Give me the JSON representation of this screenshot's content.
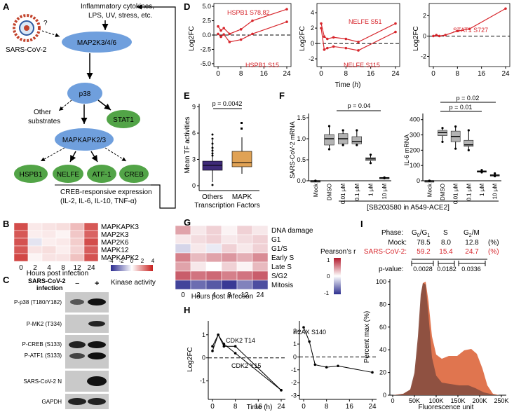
{
  "panels": {
    "a": "A",
    "b": "B",
    "c": "C",
    "d": "D",
    "e": "E",
    "f": "F",
    "g": "G",
    "h": "H",
    "i": "I"
  },
  "colors": {
    "node_blue": "#6f9fdd",
    "node_green": "#52a447",
    "red": "#d7262c",
    "purple": "#3e2a78",
    "orange": "#e0a255",
    "gray_box": "#b3b3b3",
    "hist_mock": "#8a4f40",
    "hist_sars": "#e0754f"
  },
  "pathway": {
    "virus_label": "SARS-CoV-2",
    "question": "?",
    "stimuli": "Inflammatory cytokines,",
    "stimuli2": "LPS, UV, stress, etc.",
    "map2k": "MAP2K3/4/6",
    "p38": "p38",
    "stat1": "STAT1",
    "other1": "Other",
    "other2": "substrates",
    "mapkapk": "MAPKAPK2/3",
    "targets": [
      "HSPB1",
      "NELFE",
      "ATF-1",
      "CREB"
    ],
    "creb_line1": "CREB-responsive expression",
    "creb_line2": "(IL-2, IL-6, IL-10, TNF-α)"
  },
  "heatmap_b": {
    "rows": [
      "MAPKAPK3",
      "MAP2K3",
      "MAP2K6",
      "MAPK12",
      "MAPKAPK2"
    ],
    "cols": [
      "0",
      "2",
      "4",
      "8",
      "12",
      "24"
    ],
    "values": [
      [
        3.2,
        0.4,
        0.5,
        0.6,
        1.2,
        3.0
      ],
      [
        3.0,
        0.3,
        0.4,
        0.2,
        1.0,
        2.8
      ],
      [
        3.1,
        -0.5,
        0.3,
        0.4,
        0.9,
        3.2
      ],
      [
        3.0,
        0.5,
        0.6,
        0.3,
        0.8,
        2.9
      ],
      [
        3.3,
        0.2,
        0.5,
        0.5,
        1.1,
        3.1
      ]
    ],
    "xlabel": "Hours post infection",
    "legend_ticks": [
      "-4",
      "-2",
      "0",
      "2",
      "4"
    ],
    "legend_title": "Kinase activity"
  },
  "blot_c": {
    "header1": "SARS-CoV-2",
    "header2": "infection",
    "minus": "−",
    "plus": "+",
    "bands": [
      "P-p38 (T180/Y182)",
      "P-MK2 (T334)",
      "P-CREB (S133)",
      "P-ATF1 (S133)",
      "SARS-CoV-2 N",
      "GAPDH"
    ]
  },
  "panel_d": {
    "ylabel": "Log2FC",
    "xlabel_prefix": "Time (",
    "xlabel_h": "h",
    "xlabel_suffix": ")",
    "xticks": [
      "0",
      "8",
      "16",
      "24"
    ],
    "yticks1": [
      "5.0",
      "2.5",
      "0.0",
      "-2.5",
      "-5.0"
    ],
    "yticks2": [
      "4",
      "2",
      "0",
      "-2"
    ],
    "yticks3": [
      "4",
      "2",
      "0",
      "-2"
    ],
    "series": [
      {
        "label": "HSPB1 S78,82",
        "x": [
          0,
          1,
          2,
          4,
          8,
          12,
          24
        ],
        "y": [
          1.5,
          0.8,
          1.2,
          0.2,
          1.0,
          2.5,
          4.5
        ]
      },
      {
        "label": "HSPB1 S15",
        "x": [
          0,
          1,
          2,
          4,
          8,
          12,
          24
        ],
        "y": [
          0.2,
          -0.3,
          0.1,
          -1.2,
          -0.8,
          0.2,
          2.3
        ]
      },
      {
        "label": "NELFE S51",
        "x": [
          0,
          1,
          2,
          4,
          8,
          12,
          24
        ],
        "y": [
          2.6,
          0.9,
          0.6,
          0.8,
          0.6,
          0.2,
          2.6
        ]
      },
      {
        "label": "NELFE S115",
        "x": [
          0,
          1,
          2,
          4,
          8,
          12,
          24
        ],
        "y": [
          2.0,
          -0.8,
          -0.6,
          -0.4,
          -0.6,
          -0.9,
          1.5
        ]
      },
      {
        "label": "STAT1 S727",
        "x": [
          0,
          1,
          2,
          4,
          8,
          12,
          24
        ],
        "y": [
          0.0,
          0.1,
          0.0,
          0.1,
          0.5,
          0.7,
          2.7
        ]
      }
    ]
  },
  "panel_e": {
    "ylabel": "Mean TF activities",
    "yticks": [
      "9",
      "6",
      "3",
      "0"
    ],
    "pvalue": "p = 0.0042",
    "cats": [
      "Others",
      "MAPK"
    ],
    "xlabel": "Transcription Factors"
  },
  "panel_f": {
    "ylabel1": "SARS-CoV-2 mRNA",
    "ylabel2": "IL-6 mRNA",
    "yticks1": [
      "1.5",
      "1.0",
      "0.5",
      "0.0"
    ],
    "yticks2": [
      "400",
      "300",
      "200",
      "100",
      "0"
    ],
    "cats": [
      "Mock",
      "DMSO",
      "0.01 μM",
      "0.1 μM",
      "1 μM",
      "10 μM"
    ],
    "p1": "p = 0.04",
    "p2": "p = 0.02",
    "p3": "p = 0.01",
    "caption": "[SB203580 in A549-ACE2]"
  },
  "panel_g": {
    "rows": [
      "DNA damage",
      "G1",
      "G1/S",
      "Early S",
      "Late S",
      "S/G2",
      "Mitosis"
    ],
    "cols": [
      "0",
      "2",
      "4",
      "8",
      "12",
      "24"
    ],
    "values": [
      [
        0.4,
        0.1,
        0.2,
        0.05,
        0.2,
        0.1
      ],
      [
        0.1,
        0.15,
        0.2,
        0.1,
        0.15,
        0.2
      ],
      [
        -0.2,
        0.1,
        -0.1,
        0.2,
        0.1,
        0.2
      ],
      [
        0.55,
        0.3,
        0.4,
        0.45,
        0.35,
        0.5
      ],
      [
        0.4,
        0.1,
        0.0,
        0.2,
        0.05,
        0.3
      ],
      [
        0.7,
        0.6,
        0.65,
        0.55,
        0.6,
        0.7
      ],
      [
        -0.9,
        -0.7,
        -0.8,
        -0.95,
        -0.6,
        -0.85
      ]
    ],
    "xlabel": "Hours post infection",
    "legend_title": "Pearson’s r",
    "legend_ticks": [
      "1",
      "0",
      "-1"
    ]
  },
  "panel_h": {
    "ylabel": "Log2FC",
    "xlabel": "Time (h)",
    "xticks": [
      "0",
      "8",
      "16",
      "24"
    ],
    "yticks1": [
      "1",
      "0",
      "-1"
    ],
    "yticks2": [
      "2",
      "1",
      "0",
      "-1",
      "-2",
      "-3"
    ],
    "series": [
      {
        "label": "CDK2 T14",
        "x": [
          0,
          2,
          4,
          8,
          24
        ],
        "y": [
          0.5,
          1.0,
          0.6,
          0.2,
          -1.4
        ]
      },
      {
        "label": "CDK2 Y15",
        "x": [
          0,
          2,
          4,
          8,
          24
        ],
        "y": [
          0.3,
          1.0,
          0.5,
          0.5,
          -1.4
        ]
      },
      {
        "label": "H2AX S140",
        "x": [
          0,
          2,
          4,
          8,
          12,
          24
        ],
        "y": [
          2.3,
          1.2,
          -0.6,
          -0.8,
          -0.7,
          -1.2
        ]
      }
    ]
  },
  "panel_i": {
    "phase": "Phase:",
    "g0g1": "G",
    "g0sub": "0",
    "slash": "/G",
    "g1sub": "1",
    "s": "S",
    "g2m": "G",
    "g2sub": "2",
    "m": "/M",
    "mock": "Mock:",
    "mock_vals": [
      "78.5",
      "8.0",
      "12.8"
    ],
    "sars": "SARS-CoV-2:",
    "sars_vals": [
      "59.2",
      "15.4",
      "24.7"
    ],
    "pct": "(%)",
    "pvalue": "p-value:",
    "pvals": [
      "0.0028",
      "0.0182",
      "0.0336"
    ],
    "ylabel": "Percent max (%)",
    "yticks": [
      "100",
      "80",
      "60",
      "40",
      "20",
      "0"
    ],
    "xticks": [
      "0",
      "50K",
      "100K",
      "150K",
      "200K",
      "250K"
    ],
    "xlabel": "Fluorescence unit"
  }
}
